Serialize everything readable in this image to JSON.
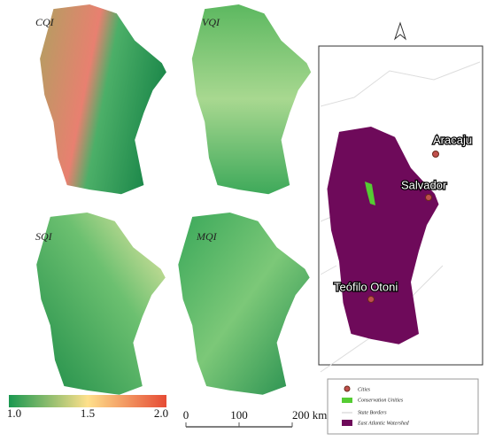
{
  "panels": [
    {
      "label": "CQI"
    },
    {
      "label": "VQI"
    },
    {
      "label": "SQI"
    },
    {
      "label": "MQI"
    }
  ],
  "colorbar": {
    "ticks": [
      {
        "value": 1,
        "label": "1.0"
      },
      {
        "value": 1.5,
        "label": "1.5"
      },
      {
        "value": 2,
        "label": "2.0"
      }
    ]
  },
  "scale_bar": {
    "ticks": [
      0,
      100,
      {
        "value": 200,
        "label": "200 km"
      }
    ]
  },
  "inset": {
    "cities": [
      "Aracaju",
      "Salvador",
      "Teófilo Otoni"
    ]
  },
  "legend": {
    "items": [
      "Cities",
      "Conservation Unities",
      "State Borders",
      "East Atlantic Watershed"
    ]
  }
}
